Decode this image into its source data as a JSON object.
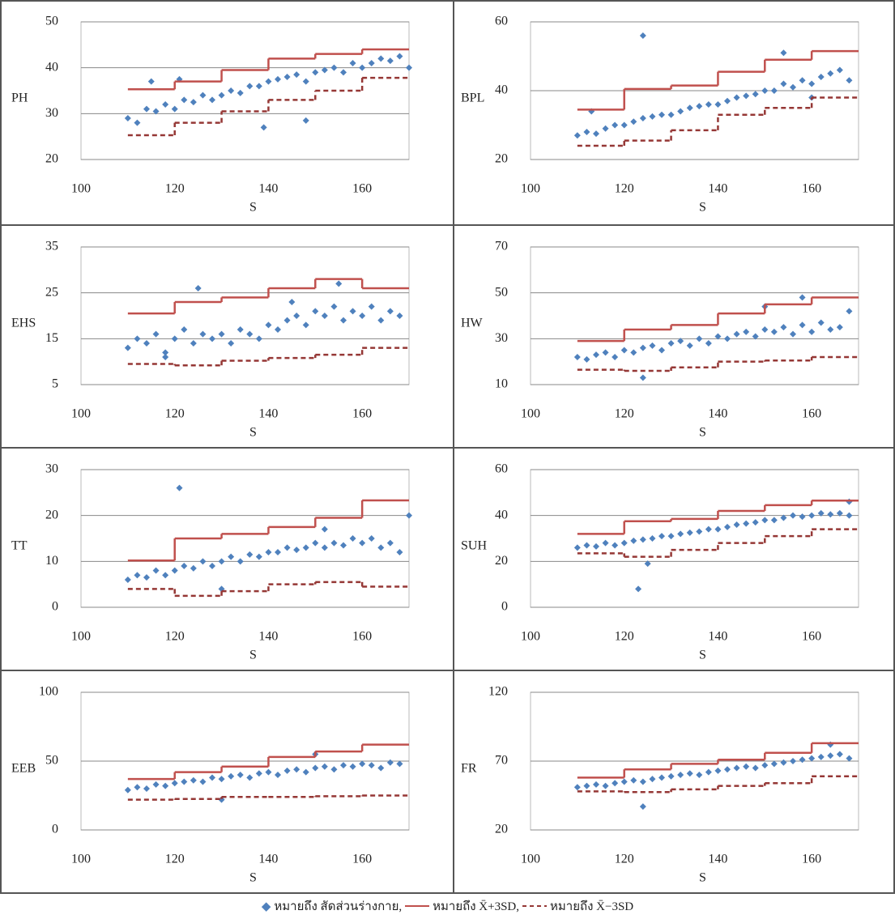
{
  "chart_data": [
    {
      "type": "scatter",
      "xlabel": "S",
      "ylabel": "PH",
      "xlim": [
        100,
        170
      ],
      "xticks": [
        100,
        120,
        140,
        160
      ],
      "ylim": [
        20,
        50
      ],
      "yticks": [
        20,
        30,
        40,
        50
      ],
      "grid": true,
      "series": [
        {
          "style": "markers",
          "color": "#4f81bd",
          "x": [
            110,
            112,
            114,
            116,
            118,
            120,
            122,
            124,
            126,
            128,
            130,
            132,
            134,
            136,
            138,
            140,
            142,
            144,
            146,
            148,
            150,
            152,
            154,
            156,
            158,
            160,
            162,
            164,
            166,
            168,
            115,
            121,
            139,
            148,
            170
          ],
          "values": [
            29,
            28,
            31,
            30.5,
            32,
            31,
            33,
            32.5,
            34,
            33,
            34,
            35,
            34.5,
            36,
            36,
            37,
            37.5,
            38,
            38.5,
            37,
            39,
            39.5,
            40,
            39,
            41,
            40,
            41,
            42,
            41.5,
            42.5,
            37,
            37.5,
            27,
            28.5,
            40
          ]
        },
        {
          "style": "step",
          "color": "#c0504d",
          "edges": [
            110,
            120,
            130,
            140,
            150,
            160,
            170
          ],
          "values": [
            35.3,
            37,
            39.5,
            42,
            43,
            44
          ]
        },
        {
          "style": "step-dashed",
          "color": "#953735",
          "edges": [
            110,
            120,
            130,
            140,
            150,
            160,
            170
          ],
          "values": [
            25.3,
            28,
            30.5,
            33,
            35,
            37.8
          ]
        }
      ]
    },
    {
      "type": "scatter",
      "xlabel": "S",
      "ylabel": "BPL",
      "xlim": [
        100,
        170
      ],
      "xticks": [
        100,
        120,
        140,
        160
      ],
      "ylim": [
        20,
        60
      ],
      "yticks": [
        20,
        40,
        60
      ],
      "grid": true,
      "series": [
        {
          "style": "markers",
          "color": "#4f81bd",
          "x": [
            110,
            112,
            114,
            116,
            118,
            120,
            122,
            124,
            126,
            128,
            130,
            132,
            134,
            136,
            138,
            140,
            142,
            144,
            146,
            148,
            150,
            152,
            154,
            156,
            158,
            160,
            162,
            164,
            166,
            168,
            124,
            154,
            113,
            160
          ],
          "values": [
            27,
            28,
            27.5,
            29,
            30,
            30,
            31,
            32,
            32.5,
            33,
            33,
            34,
            35,
            35.5,
            36,
            36,
            37,
            38,
            38.5,
            39,
            40,
            40,
            42,
            41,
            43,
            42,
            44,
            45,
            46,
            43,
            56,
            51,
            34,
            38
          ]
        },
        {
          "style": "step",
          "color": "#c0504d",
          "edges": [
            110,
            120,
            130,
            140,
            150,
            160,
            170
          ],
          "values": [
            34.5,
            40.5,
            41.5,
            45.5,
            49,
            51.5
          ]
        },
        {
          "style": "step-dashed",
          "color": "#953735",
          "edges": [
            110,
            120,
            130,
            140,
            150,
            160,
            170
          ],
          "values": [
            24,
            25.5,
            28.5,
            33,
            35,
            38
          ]
        }
      ]
    },
    {
      "type": "scatter",
      "xlabel": "S",
      "ylabel": "EHS",
      "xlim": [
        100,
        170
      ],
      "xticks": [
        100,
        120,
        140,
        160
      ],
      "ylim": [
        5,
        35
      ],
      "yticks": [
        5,
        15,
        25,
        35
      ],
      "grid": true,
      "series": [
        {
          "style": "markers",
          "color": "#4f81bd",
          "x": [
            110,
            112,
            114,
            116,
            118,
            120,
            122,
            124,
            126,
            128,
            130,
            132,
            134,
            136,
            138,
            140,
            142,
            144,
            146,
            148,
            150,
            152,
            154,
            156,
            158,
            160,
            162,
            164,
            166,
            168,
            125,
            155,
            118,
            145
          ],
          "values": [
            13,
            15,
            14,
            16,
            12,
            15,
            17,
            14,
            16,
            15,
            16,
            14,
            17,
            16,
            15,
            18,
            17,
            19,
            20,
            18,
            21,
            20,
            22,
            19,
            21,
            20,
            22,
            19,
            21,
            20,
            26,
            27,
            11,
            23
          ]
        },
        {
          "style": "step",
          "color": "#c0504d",
          "edges": [
            110,
            120,
            130,
            140,
            150,
            160,
            170
          ],
          "values": [
            20.5,
            23,
            24,
            26,
            28,
            26
          ]
        },
        {
          "style": "step-dashed",
          "color": "#953735",
          "edges": [
            110,
            120,
            130,
            140,
            150,
            160,
            170
          ],
          "values": [
            9.5,
            9.2,
            10.2,
            10.8,
            11.5,
            13
          ]
        }
      ]
    },
    {
      "type": "scatter",
      "xlabel": "S",
      "ylabel": "HW",
      "xlim": [
        100,
        170
      ],
      "xticks": [
        100,
        120,
        140,
        160
      ],
      "ylim": [
        10,
        70
      ],
      "yticks": [
        10,
        30,
        50,
        70
      ],
      "grid": true,
      "series": [
        {
          "style": "markers",
          "color": "#4f81bd",
          "x": [
            110,
            112,
            114,
            116,
            118,
            120,
            122,
            124,
            126,
            128,
            130,
            132,
            134,
            136,
            138,
            140,
            142,
            144,
            146,
            148,
            150,
            152,
            154,
            156,
            158,
            160,
            162,
            164,
            166,
            168,
            124,
            158,
            150
          ],
          "values": [
            22,
            21,
            23,
            24,
            22,
            25,
            24,
            26,
            27,
            25,
            28,
            29,
            27,
            30,
            28,
            31,
            30,
            32,
            33,
            31,
            34,
            33,
            35,
            32,
            36,
            33,
            37,
            34,
            35,
            42,
            13,
            48,
            44
          ]
        },
        {
          "style": "step",
          "color": "#c0504d",
          "edges": [
            110,
            120,
            130,
            140,
            150,
            160,
            170
          ],
          "values": [
            29,
            34,
            36,
            41,
            45,
            48
          ]
        },
        {
          "style": "step-dashed",
          "color": "#953735",
          "edges": [
            110,
            120,
            130,
            140,
            150,
            160,
            170
          ],
          "values": [
            16.5,
            16,
            17.5,
            20,
            20.5,
            22
          ]
        }
      ]
    },
    {
      "type": "scatter",
      "xlabel": "S",
      "ylabel": "TT",
      "xlim": [
        100,
        170
      ],
      "xticks": [
        100,
        120,
        140,
        160
      ],
      "ylim": [
        0,
        30
      ],
      "yticks": [
        0,
        10,
        20,
        30
      ],
      "grid": true,
      "series": [
        {
          "style": "markers",
          "color": "#4f81bd",
          "x": [
            110,
            112,
            114,
            116,
            118,
            120,
            122,
            124,
            126,
            128,
            130,
            132,
            134,
            136,
            138,
            140,
            142,
            144,
            146,
            148,
            150,
            152,
            154,
            156,
            158,
            160,
            162,
            164,
            166,
            168,
            121,
            152,
            170,
            130
          ],
          "values": [
            6,
            7,
            6.5,
            8,
            7,
            8,
            9,
            8.5,
            10,
            9,
            10,
            11,
            10,
            11.5,
            11,
            12,
            12,
            13,
            12.5,
            13,
            14,
            13,
            14,
            13.5,
            15,
            14,
            15,
            13,
            14,
            12,
            26,
            17,
            20,
            4
          ]
        },
        {
          "style": "step",
          "color": "#c0504d",
          "edges": [
            110,
            120,
            130,
            140,
            150,
            160,
            170
          ],
          "values": [
            10.2,
            15,
            16,
            17.5,
            19.5,
            23.3
          ]
        },
        {
          "style": "step-dashed",
          "color": "#953735",
          "edges": [
            110,
            120,
            130,
            140,
            150,
            160,
            170
          ],
          "values": [
            4,
            2.5,
            3.5,
            5,
            5.5,
            4.5
          ]
        }
      ]
    },
    {
      "type": "scatter",
      "xlabel": "S",
      "ylabel": "SUH",
      "xlim": [
        100,
        170
      ],
      "xticks": [
        100,
        120,
        140,
        160
      ],
      "ylim": [
        0,
        60
      ],
      "yticks": [
        0,
        20,
        40,
        60
      ],
      "grid": true,
      "series": [
        {
          "style": "markers",
          "color": "#4f81bd",
          "x": [
            110,
            112,
            114,
            116,
            118,
            120,
            122,
            124,
            126,
            128,
            130,
            132,
            134,
            136,
            138,
            140,
            142,
            144,
            146,
            148,
            150,
            152,
            154,
            156,
            158,
            160,
            162,
            164,
            166,
            168,
            123,
            125,
            168
          ],
          "values": [
            26,
            27,
            26.5,
            28,
            27,
            28,
            29,
            29.5,
            30,
            31,
            31,
            32,
            32.5,
            33,
            34,
            34,
            35,
            36,
            36.5,
            37,
            38,
            38,
            39,
            40,
            39.5,
            40,
            41,
            40.5,
            41,
            40,
            8,
            19,
            46
          ]
        },
        {
          "style": "step",
          "color": "#c0504d",
          "edges": [
            110,
            120,
            130,
            140,
            150,
            160,
            170
          ],
          "values": [
            32,
            37.5,
            38.5,
            42,
            44.5,
            46.5
          ]
        },
        {
          "style": "step-dashed",
          "color": "#953735",
          "edges": [
            110,
            120,
            130,
            140,
            150,
            160,
            170
          ],
          "values": [
            23.5,
            22,
            25,
            28,
            31,
            34
          ]
        }
      ]
    },
    {
      "type": "scatter",
      "xlabel": "S",
      "ylabel": "EEB",
      "xlim": [
        100,
        170
      ],
      "xticks": [
        100,
        120,
        140,
        160
      ],
      "ylim": [
        0,
        100
      ],
      "yticks": [
        0,
        50,
        100
      ],
      "grid": true,
      "series": [
        {
          "style": "markers",
          "color": "#4f81bd",
          "x": [
            110,
            112,
            114,
            116,
            118,
            120,
            122,
            124,
            126,
            128,
            130,
            132,
            134,
            136,
            138,
            140,
            142,
            144,
            146,
            148,
            150,
            152,
            154,
            156,
            158,
            160,
            162,
            164,
            166,
            168,
            130,
            150
          ],
          "values": [
            29,
            31,
            30,
            33,
            32,
            34,
            35,
            36,
            35,
            38,
            37,
            39,
            40,
            38,
            41,
            42,
            40,
            43,
            44,
            42,
            45,
            46,
            44,
            47,
            46,
            48,
            47,
            45,
            49,
            48,
            22,
            55
          ]
        },
        {
          "style": "step",
          "color": "#c0504d",
          "edges": [
            110,
            120,
            130,
            140,
            150,
            160,
            170
          ],
          "values": [
            37,
            42,
            46,
            53,
            57,
            62
          ]
        },
        {
          "style": "step-dashed",
          "color": "#953735",
          "edges": [
            110,
            120,
            130,
            140,
            150,
            160,
            170
          ],
          "values": [
            22,
            22.5,
            24,
            24,
            24.5,
            25
          ]
        }
      ]
    },
    {
      "type": "scatter",
      "xlabel": "S",
      "ylabel": "FR",
      "xlim": [
        100,
        170
      ],
      "xticks": [
        100,
        120,
        140,
        160
      ],
      "ylim": [
        20,
        120
      ],
      "yticks": [
        20,
        70,
        120
      ],
      "grid": true,
      "series": [
        {
          "style": "markers",
          "color": "#4f81bd",
          "x": [
            110,
            112,
            114,
            116,
            118,
            120,
            122,
            124,
            126,
            128,
            130,
            132,
            134,
            136,
            138,
            140,
            142,
            144,
            146,
            148,
            150,
            152,
            154,
            156,
            158,
            160,
            162,
            164,
            166,
            168,
            124,
            164
          ],
          "values": [
            51,
            52,
            53,
            52,
            54,
            55,
            56,
            55,
            57,
            58,
            59,
            60,
            61,
            60,
            62,
            63,
            64,
            65,
            66,
            65,
            67,
            68,
            69,
            70,
            71,
            72,
            73,
            74,
            75,
            72,
            37,
            82
          ]
        },
        {
          "style": "step",
          "color": "#c0504d",
          "edges": [
            110,
            120,
            130,
            140,
            150,
            160,
            170
          ],
          "values": [
            58,
            64,
            68,
            71,
            76,
            83
          ]
        },
        {
          "style": "step-dashed",
          "color": "#953735",
          "edges": [
            110,
            120,
            130,
            140,
            150,
            160,
            170
          ],
          "values": [
            48,
            47.5,
            49.5,
            52,
            54,
            59
          ]
        }
      ]
    }
  ],
  "legend": [
    "หมายถึง สัดส่วนร่างกาย,",
    "หมายถึง X̄+3SD,",
    "หมายถึง X̄−3SD"
  ]
}
